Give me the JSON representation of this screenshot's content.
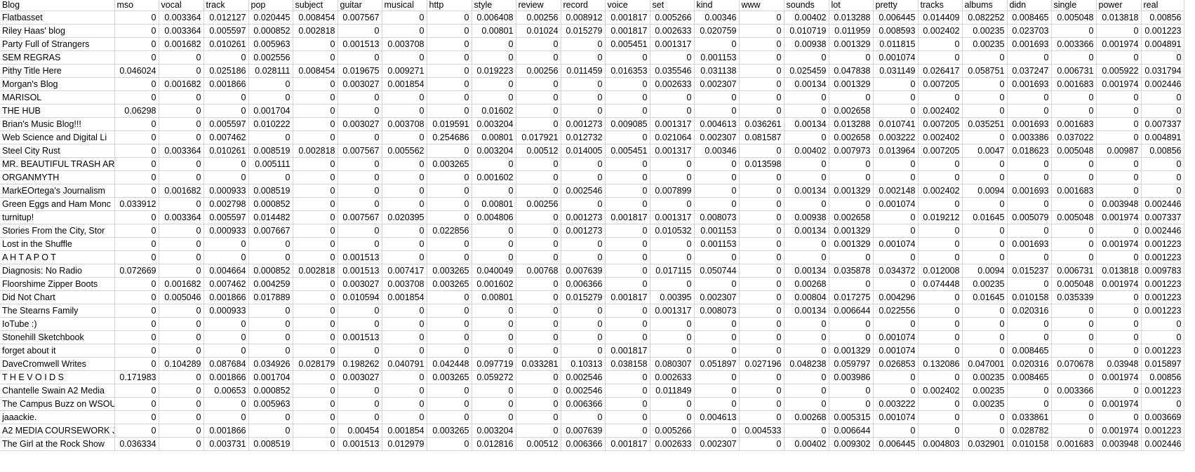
{
  "columns": [
    "Blog",
    "mso",
    "vocal",
    "track",
    "pop",
    "subject",
    "guitar",
    "musical",
    "http",
    "style",
    "review",
    "record",
    "voice",
    "set",
    "kind",
    "www",
    "sounds",
    "lot",
    "pretty",
    "tracks",
    "albums",
    "didn",
    "single",
    "power",
    "real"
  ],
  "rows": [
    [
      "Flatbasset",
      "0",
      "0.003364",
      "0.012127",
      "0.020445",
      "0.008454",
      "0.007567",
      "0",
      "0",
      "0.006408",
      "0.00256",
      "0.008912",
      "0.001817",
      "0.005266",
      "0.00346",
      "0",
      "0.00402",
      "0.013288",
      "0.006445",
      "0.014409",
      "0.082252",
      "0.008465",
      "0.005048",
      "0.013818",
      "0.00856"
    ],
    [
      "Riley Haas' blog",
      "0",
      "0.003364",
      "0.005597",
      "0.000852",
      "0.002818",
      "0",
      "0",
      "0",
      "0.00801",
      "0.01024",
      "0.015279",
      "0.001817",
      "0.002633",
      "0.020759",
      "0",
      "0.010719",
      "0.011959",
      "0.008593",
      "0.002402",
      "0.00235",
      "0.023703",
      "0",
      "0",
      "0.001223"
    ],
    [
      "Party Full of Strangers",
      "0",
      "0.001682",
      "0.010261",
      "0.005963",
      "0",
      "0.001513",
      "0.003708",
      "0",
      "0",
      "0",
      "0",
      "0.005451",
      "0.001317",
      "0",
      "0",
      "0.00938",
      "0.001329",
      "0.011815",
      "0",
      "0.00235",
      "0.001693",
      "0.003366",
      "0.001974",
      "0.004891"
    ],
    [
      "SEM REGRAS",
      "0",
      "0",
      "0",
      "0.002556",
      "0",
      "0",
      "0",
      "0",
      "0",
      "0",
      "0",
      "0",
      "0",
      "0.001153",
      "0",
      "0",
      "0",
      "0.001074",
      "0",
      "0",
      "0",
      "0",
      "0",
      "0"
    ],
    [
      "Pithy Title Here",
      "0.046024",
      "0",
      "0.025186",
      "0.028111",
      "0.008454",
      "0.019675",
      "0.009271",
      "0",
      "0.019223",
      "0.00256",
      "0.011459",
      "0.016353",
      "0.035546",
      "0.031138",
      "0",
      "0.025459",
      "0.047838",
      "0.031149",
      "0.026417",
      "0.058751",
      "0.037247",
      "0.006731",
      "0.005922",
      "0.031794"
    ],
    [
      "Morgan's Blog",
      "0",
      "0.001682",
      "0.001866",
      "0",
      "0",
      "0.003027",
      "0.001854",
      "0",
      "0",
      "0",
      "0",
      "0",
      "0.002633",
      "0.002307",
      "0",
      "0.00134",
      "0.001329",
      "0",
      "0.007205",
      "0",
      "0.001693",
      "0.001683",
      "0.001974",
      "0.002446"
    ],
    [
      "MARISOL",
      "0",
      "0",
      "0",
      "0",
      "0",
      "0",
      "0",
      "0",
      "0",
      "0",
      "0",
      "0",
      "0",
      "0",
      "0",
      "0",
      "0",
      "0",
      "0",
      "0",
      "0",
      "0",
      "0",
      "0"
    ],
    [
      "THE HUB",
      "0.06298",
      "0",
      "0",
      "0.001704",
      "0",
      "0",
      "0",
      "0",
      "0.01602",
      "0",
      "0",
      "0",
      "0",
      "0",
      "0",
      "0",
      "0.002658",
      "0",
      "0.002402",
      "0",
      "0",
      "0",
      "0",
      "0"
    ],
    [
      "Brian's Music Blog!!!",
      "0",
      "0",
      "0.005597",
      "0.010222",
      "0",
      "0.003027",
      "0.003708",
      "0.019591",
      "0.003204",
      "0",
      "0.001273",
      "0.009085",
      "0.001317",
      "0.004613",
      "0.036261",
      "0.00134",
      "0.013288",
      "0.010741",
      "0.007205",
      "0.035251",
      "0.001693",
      "0.001683",
      "0",
      "0.007337"
    ],
    [
      "Web Science and Digital Li",
      "0",
      "0",
      "0.007462",
      "0",
      "0",
      "0",
      "0",
      "0.254686",
      "0.00801",
      "0.017921",
      "0.012732",
      "0",
      "0.021064",
      "0.002307",
      "0.081587",
      "0",
      "0.002658",
      "0.003222",
      "0.002402",
      "0",
      "0.003386",
      "0.037022",
      "0",
      "0.004891"
    ],
    [
      "Steel City Rust",
      "0",
      "0.003364",
      "0.010261",
      "0.008519",
      "0.002818",
      "0.007567",
      "0.005562",
      "0",
      "0.003204",
      "0.00512",
      "0.014005",
      "0.005451",
      "0.001317",
      "0.00346",
      "0",
      "0.00402",
      "0.007973",
      "0.013964",
      "0.007205",
      "0.0047",
      "0.018623",
      "0.005048",
      "0.00987",
      "0.00856"
    ],
    [
      "MR. BEAUTIFUL TRASH ART",
      "0",
      "0",
      "0",
      "0.005111",
      "0",
      "0",
      "0",
      "0.003265",
      "0",
      "0",
      "0",
      "0",
      "0",
      "0",
      "0.013598",
      "0",
      "0",
      "0",
      "0",
      "0",
      "0",
      "0",
      "0",
      "0"
    ],
    [
      "ORGANMYTH",
      "0",
      "0",
      "0",
      "0",
      "0",
      "0",
      "0",
      "0",
      "0.001602",
      "0",
      "0",
      "0",
      "0",
      "0",
      "0",
      "0",
      "0",
      "0",
      "0",
      "0",
      "0",
      "0",
      "0",
      "0"
    ],
    [
      "MarkEOrtega's Journalism",
      "0",
      "0.001682",
      "0.000933",
      "0.008519",
      "0",
      "0",
      "0",
      "0",
      "0",
      "0",
      "0.002546",
      "0",
      "0.007899",
      "0",
      "0",
      "0.00134",
      "0.001329",
      "0.002148",
      "0.002402",
      "0.0094",
      "0.001693",
      "0.001683",
      "0",
      "0"
    ],
    [
      "Green Eggs and Ham Monc",
      "0.033912",
      "0",
      "0.002798",
      "0.000852",
      "0",
      "0",
      "0",
      "0",
      "0.00801",
      "0.00256",
      "0",
      "0",
      "0",
      "0",
      "0",
      "0",
      "0",
      "0.001074",
      "0",
      "0",
      "0",
      "0",
      "0.003948",
      "0.002446"
    ],
    [
      "turnitup!",
      "0",
      "0.003364",
      "0.005597",
      "0.014482",
      "0",
      "0.007567",
      "0.020395",
      "0",
      "0.004806",
      "0",
      "0.001273",
      "0.001817",
      "0.001317",
      "0.008073",
      "0",
      "0.00938",
      "0.002658",
      "0",
      "0.019212",
      "0.01645",
      "0.005079",
      "0.005048",
      "0.001974",
      "0.007337"
    ],
    [
      "Stories From the City, Stor",
      "0",
      "0",
      "0.000933",
      "0.007667",
      "0",
      "0",
      "0",
      "0.022856",
      "0",
      "0",
      "0.001273",
      "0",
      "0.010532",
      "0.001153",
      "0",
      "0.00134",
      "0.001329",
      "0",
      "0",
      "0",
      "0",
      "0",
      "0",
      "0.002446"
    ],
    [
      "Lost in the Shuffle",
      "0",
      "0",
      "0",
      "0",
      "0",
      "0",
      "0",
      "0",
      "0",
      "0",
      "0",
      "0",
      "0",
      "0.001153",
      "0",
      "0",
      "0.001329",
      "0.001074",
      "0",
      "0",
      "0.001693",
      "0",
      "0.001974",
      "0.001223"
    ],
    [
      "A H T A P O T",
      "0",
      "0",
      "0",
      "0",
      "0",
      "0.001513",
      "0",
      "0",
      "0",
      "0",
      "0",
      "0",
      "0",
      "0",
      "0",
      "0",
      "0",
      "0",
      "0",
      "0",
      "0",
      "0",
      "0",
      "0.001223"
    ],
    [
      "Diagnosis: No Radio",
      "0.072669",
      "0",
      "0.004664",
      "0.000852",
      "0.002818",
      "0.001513",
      "0.007417",
      "0.003265",
      "0.040049",
      "0.00768",
      "0.007639",
      "0",
      "0.017115",
      "0.050744",
      "0",
      "0.00134",
      "0.035878",
      "0.034372",
      "0.012008",
      "0.0094",
      "0.015237",
      "0.006731",
      "0.013818",
      "0.009783"
    ],
    [
      "Floorshime Zipper Boots",
      "0",
      "0.001682",
      "0.007462",
      "0.004259",
      "0",
      "0.003027",
      "0.003708",
      "0.003265",
      "0.001602",
      "0",
      "0.006366",
      "0",
      "0",
      "0",
      "0",
      "0.00268",
      "0",
      "0",
      "0.074448",
      "0.00235",
      "0",
      "0.005048",
      "0.001974",
      "0.001223"
    ],
    [
      "Did Not Chart",
      "0",
      "0.005046",
      "0.001866",
      "0.017889",
      "0",
      "0.010594",
      "0.001854",
      "0",
      "0.00801",
      "0",
      "0.015279",
      "0.001817",
      "0.00395",
      "0.002307",
      "0",
      "0.00804",
      "0.017275",
      "0.004296",
      "0",
      "0.01645",
      "0.010158",
      "0.035339",
      "0",
      "0.001223"
    ],
    [
      "The Stearns Family",
      "0",
      "0",
      "0.000933",
      "0",
      "0",
      "0",
      "0",
      "0",
      "0",
      "0",
      "0",
      "0",
      "0.001317",
      "0.008073",
      "0",
      "0.00134",
      "0.006644",
      "0.022556",
      "0",
      "0",
      "0.020316",
      "0",
      "0",
      "0.001223"
    ],
    [
      "IoTube    :)",
      "0",
      "0",
      "0",
      "0",
      "0",
      "0",
      "0",
      "0",
      "0",
      "0",
      "0",
      "0",
      "0",
      "0",
      "0",
      "0",
      "0",
      "0",
      "0",
      "0",
      "0",
      "0",
      "0",
      "0"
    ],
    [
      "Stonehill Sketchbook",
      "0",
      "0",
      "0",
      "0",
      "0",
      "0.001513",
      "0",
      "0",
      "0",
      "0",
      "0",
      "0",
      "0",
      "0",
      "0",
      "0",
      "0",
      "0.001074",
      "0",
      "0",
      "0",
      "0",
      "0",
      "0"
    ],
    [
      "forget about it",
      "0",
      "0",
      "0",
      "0",
      "0",
      "0",
      "0",
      "0",
      "0",
      "0",
      "0",
      "0.001817",
      "0",
      "0",
      "0",
      "0",
      "0.001329",
      "0.001074",
      "0",
      "0",
      "0.008465",
      "0",
      "0",
      "0.001223"
    ],
    [
      "DaveCromwell Writes",
      "0",
      "0.104289",
      "0.087684",
      "0.034926",
      "0.028179",
      "0.198262",
      "0.040791",
      "0.042448",
      "0.097719",
      "0.033281",
      "0.10313",
      "0.038158",
      "0.080307",
      "0.051897",
      "0.027196",
      "0.048238",
      "0.059797",
      "0.026853",
      "0.132086",
      "0.047001",
      "0.020316",
      "0.070678",
      "0.03948",
      "0.015897"
    ],
    [
      "T H E V O I D S",
      "0.171983",
      "0",
      "0.001866",
      "0.001704",
      "0",
      "0.003027",
      "0",
      "0.003265",
      "0.059272",
      "0",
      "0.002546",
      "0",
      "0.002633",
      "0",
      "0",
      "0",
      "0.003986",
      "0",
      "0",
      "0.00235",
      "0.008465",
      "0",
      "0.001974",
      "0.00856"
    ],
    [
      "Chantelle Swain A2 Media",
      "0",
      "0",
      "0.00653",
      "0.000852",
      "0",
      "0",
      "0",
      "0",
      "0",
      "0",
      "0.002546",
      "0",
      "0.011849",
      "0",
      "0",
      "0",
      "0",
      "0",
      "0.002402",
      "0.00235",
      "0",
      "0.003366",
      "0",
      "0.001223"
    ],
    [
      "The Campus Buzz on WSOU",
      "0",
      "0",
      "0",
      "0.005963",
      "0",
      "0",
      "0",
      "0",
      "0",
      "0",
      "0.006366",
      "0",
      "0",
      "0",
      "0",
      "0",
      "0",
      "0.003222",
      "0",
      "0.00235",
      "0",
      "0",
      "0.001974",
      "0"
    ],
    [
      "jaaackie.",
      "0",
      "0",
      "0",
      "0",
      "0",
      "0",
      "0",
      "0",
      "0",
      "0",
      "0",
      "0",
      "0",
      "0.004613",
      "0",
      "0.00268",
      "0.005315",
      "0.001074",
      "0",
      "0",
      "0.033861",
      "0",
      "0",
      "0.003669"
    ],
    [
      "A2 MEDIA COURSEWORK J",
      "0",
      "0",
      "0.001866",
      "0",
      "0",
      "0.00454",
      "0.001854",
      "0.003265",
      "0.003204",
      "0",
      "0.007639",
      "0",
      "0.005266",
      "0",
      "0.004533",
      "0",
      "0.006644",
      "0",
      "0",
      "0",
      "0.028782",
      "0",
      "0.001974",
      "0.001223"
    ],
    [
      "The Girl at the Rock Show",
      "0.036334",
      "0",
      "0.003731",
      "0.008519",
      "0",
      "0.001513",
      "0.012979",
      "0",
      "0.012816",
      "0.00512",
      "0.006366",
      "0.001817",
      "0.002633",
      "0.002307",
      "0",
      "0.00402",
      "0.009302",
      "0.006445",
      "0.004803",
      "0.032901",
      "0.010158",
      "0.001683",
      "0.003948",
      "0.002446"
    ]
  ]
}
